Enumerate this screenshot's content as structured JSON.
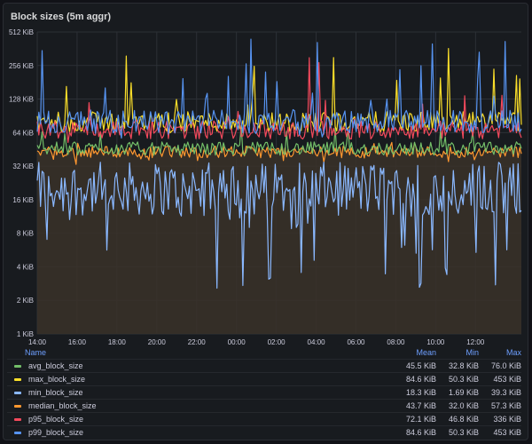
{
  "panel": {
    "title": "Block sizes (5m aggr)"
  },
  "legend": {
    "headers": {
      "name": "Name",
      "mean": "Mean",
      "min": "Min",
      "max": "Max"
    },
    "rows": [
      {
        "name": "avg_block_size",
        "color": "#73bf69",
        "mean": "45.5 KiB",
        "min": "32.8 KiB",
        "max": "76.0 KiB"
      },
      {
        "name": "max_block_size",
        "color": "#fade2a",
        "mean": "84.6 KiB",
        "min": "50.3 KiB",
        "max": "453 KiB"
      },
      {
        "name": "min_block_size",
        "color": "#8ab8ff",
        "mean": "18.3 KiB",
        "min": "1.69 KiB",
        "max": "39.3 KiB"
      },
      {
        "name": "median_block_size",
        "color": "#ff9830",
        "mean": "43.7 KiB",
        "min": "32.0 KiB",
        "max": "57.3 KiB"
      },
      {
        "name": "p95_block_size",
        "color": "#f2495c",
        "mean": "72.1 KiB",
        "min": "46.8 KiB",
        "max": "336 KiB"
      },
      {
        "name": "p99_block_size",
        "color": "#5794f2",
        "mean": "84.6 KiB",
        "min": "50.3 KiB",
        "max": "453 KiB"
      }
    ]
  },
  "chart_data": {
    "type": "line",
    "title": "Block sizes (5m aggr)",
    "yscale": "log2",
    "ylim": [
      1,
      512
    ],
    "y_ticks": [
      "1 KiB",
      "2 KiB",
      "4 KiB",
      "8 KiB",
      "16 KiB",
      "32 KiB",
      "64 KiB",
      "128 KiB",
      "256 KiB",
      "512 KiB"
    ],
    "x_ticks": [
      "14:00",
      "16:00",
      "18:00",
      "20:00",
      "22:00",
      "00:00",
      "02:00",
      "04:00",
      "06:00",
      "08:00",
      "10:00",
      "12:00"
    ],
    "x_range_hours": [
      14,
      38.3
    ],
    "grid": true,
    "legend_position": "bottom",
    "series": [
      {
        "name": "avg_block_size",
        "color": "#73bf69",
        "mean": 45.5,
        "min": 32.8,
        "max": 76.0
      },
      {
        "name": "max_block_size",
        "color": "#fade2a",
        "mean": 84.6,
        "min": 50.3,
        "max": 453
      },
      {
        "name": "min_block_size",
        "color": "#8ab8ff",
        "mean": 18.3,
        "min": 1.69,
        "max": 39.3
      },
      {
        "name": "median_block_size",
        "color": "#ff9830",
        "mean": 43.7,
        "min": 32.0,
        "max": 57.3
      },
      {
        "name": "p95_block_size",
        "color": "#f2495c",
        "mean": 72.1,
        "min": 46.8,
        "max": 336
      },
      {
        "name": "p99_block_size",
        "color": "#5794f2",
        "mean": 84.6,
        "min": 50.3,
        "max": 453
      }
    ]
  }
}
